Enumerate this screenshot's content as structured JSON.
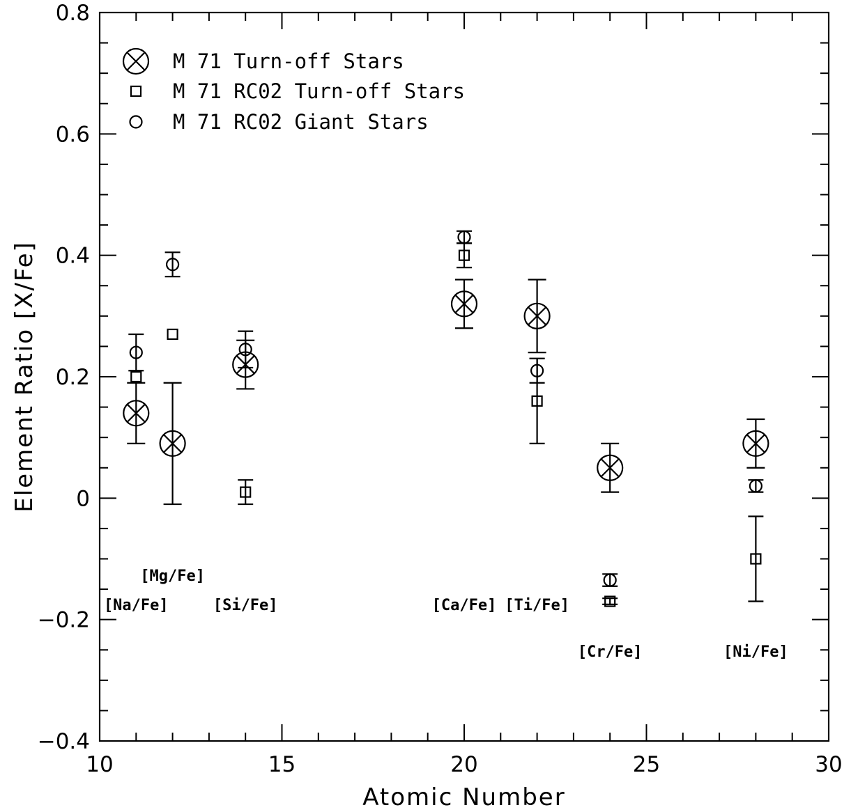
{
  "chart_data": {
    "type": "scatter",
    "xlabel": "Atomic Number",
    "ylabel": "Element Ratio [X/Fe]",
    "xlim": [
      10,
      30
    ],
    "ylim": [
      -0.4,
      0.8
    ],
    "x_ticks": [
      "10",
      "15",
      "20",
      "25",
      "30"
    ],
    "y_ticks": [
      "−0.4",
      "−0.2",
      "0",
      "0.2",
      "0.4",
      "0.6",
      "0.8"
    ],
    "legend_position": "top-left",
    "series": [
      {
        "name": "M 71 Turn-off Stars",
        "marker": "circle-cross",
        "points": [
          {
            "x": 11,
            "y": 0.14,
            "err": 0.05
          },
          {
            "x": 12,
            "y": 0.09,
            "err": 0.1
          },
          {
            "x": 14,
            "y": 0.22,
            "err": 0.04
          },
          {
            "x": 20,
            "y": 0.32,
            "err": 0.04
          },
          {
            "x": 22,
            "y": 0.3,
            "err": 0.06
          },
          {
            "x": 24,
            "y": 0.05,
            "err": 0.04
          },
          {
            "x": 28,
            "y": 0.09,
            "err": 0.04
          }
        ]
      },
      {
        "name": "M 71 RC02 Turn-off Stars",
        "marker": "square",
        "points": [
          {
            "x": 11,
            "y": 0.2,
            "err": 0
          },
          {
            "x": 12,
            "y": 0.27,
            "err": 0
          },
          {
            "x": 14,
            "y": 0.01,
            "err": 0.02
          },
          {
            "x": 20,
            "y": 0.4,
            "err": 0.02
          },
          {
            "x": 22,
            "y": 0.16,
            "err": 0.07
          },
          {
            "x": 24,
            "y": -0.17,
            "err": 0.005
          },
          {
            "x": 28,
            "y": -0.1,
            "err": 0.07
          }
        ]
      },
      {
        "name": "M 71 RC02 Giant Stars",
        "marker": "circle",
        "points": [
          {
            "x": 11,
            "y": 0.24,
            "err": 0.03
          },
          {
            "x": 12,
            "y": 0.385,
            "err": 0.02
          },
          {
            "x": 14,
            "y": 0.245,
            "err": 0.03
          },
          {
            "x": 20,
            "y": 0.43,
            "err": 0.01
          },
          {
            "x": 22,
            "y": 0.21,
            "err": 0.02
          },
          {
            "x": 24,
            "y": -0.135,
            "err": 0.01
          },
          {
            "x": 28,
            "y": 0.02,
            "err": 0.01
          }
        ]
      }
    ],
    "annotations": [
      {
        "text": "[Na/Fe]",
        "x": 11.0,
        "y": -0.175
      },
      {
        "text": "[Mg/Fe]",
        "x": 12.0,
        "y": -0.127
      },
      {
        "text": "[Si/Fe]",
        "x": 14.0,
        "y": -0.175
      },
      {
        "text": "[Ca/Fe]",
        "x": 20.0,
        "y": -0.175
      },
      {
        "text": "[Ti/Fe]",
        "x": 22.0,
        "y": -0.175
      },
      {
        "text": "[Cr/Fe]",
        "x": 24.0,
        "y": -0.252
      },
      {
        "text": "[Ni/Fe]",
        "x": 28.0,
        "y": -0.252
      }
    ]
  }
}
